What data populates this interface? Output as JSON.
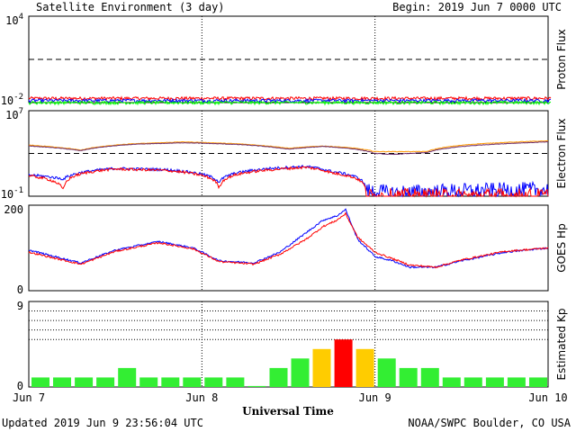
{
  "header": {
    "title": "Satellite Environment (3 day)",
    "begin": "Begin:  2019 Jun 7 0000 UTC"
  },
  "footer": {
    "updated": "Updated 2019 Jun  9 23:56:04 UTC",
    "credit": "NOAA/SWPC Boulder, CO USA"
  },
  "chart_data": [
    {
      "type": "line",
      "ylabel": "Proton Flux",
      "scale": "log",
      "y_ticks": [
        {
          "base": "10",
          "exp": "4"
        },
        {
          "base": "10",
          "exp": "-2"
        }
      ],
      "threshold": 10,
      "series": [
        {
          "color": "#ff0000",
          "level": 0.02
        },
        {
          "color": "#0000ff",
          "level": 0.014
        },
        {
          "color": "#00ff00",
          "level": 0.01
        }
      ]
    },
    {
      "type": "line",
      "ylabel": "Electron Flux",
      "scale": "log",
      "y_ticks": [
        {
          "base": "10",
          "exp": "7"
        },
        {
          "base": "10",
          "exp": "-1"
        }
      ],
      "threshold": 1000,
      "series": [
        {
          "color": "#ff9900",
          "x": [
            0,
            0.3,
            0.6,
            0.9,
            1.2,
            1.5,
            1.7,
            1.85,
            2.0,
            2.1,
            2.3,
            2.6,
            3.0
          ],
          "y": [
            6000,
            2000,
            8000,
            12000,
            8000,
            3000,
            5000,
            3500,
            1500,
            1500,
            1500,
            8000,
            15000
          ]
        },
        {
          "color": "#6a2a6a",
          "x": [
            0,
            0.3,
            0.6,
            0.9,
            1.2,
            1.5,
            1.7,
            1.85,
            2.0,
            2.1,
            2.3,
            2.6,
            3.0
          ],
          "y": [
            5000,
            1800,
            7000,
            10000,
            7000,
            2500,
            4500,
            3000,
            1000,
            800,
            1200,
            6000,
            12000
          ]
        },
        {
          "color": "#0000ff",
          "x": [
            0,
            0.2,
            0.5,
            0.8,
            1.1,
            1.4,
            1.6,
            1.75,
            1.95,
            2.1,
            2.5,
            3.0
          ],
          "y": [
            10,
            4,
            40,
            30,
            2,
            40,
            60,
            20,
            0.3,
            0.2,
            0.3,
            0.4
          ]
        },
        {
          "color": "#ff0000",
          "x": [
            0,
            0.2,
            0.5,
            0.8,
            1.1,
            1.4,
            1.6,
            1.75,
            1.95,
            2.1,
            2.5,
            3.0
          ],
          "y": [
            8,
            0.3,
            35,
            25,
            0.5,
            30,
            50,
            15,
            0.1,
            0.1,
            0.1,
            0.1
          ]
        }
      ]
    },
    {
      "type": "line",
      "ylabel": "GOES Hp",
      "scale": "linear",
      "ylim": [
        0,
        200
      ],
      "y_ticks": [
        "200",
        "0"
      ],
      "series": [
        {
          "color": "#0000ff",
          "x": [
            0,
            0.3,
            0.5,
            0.75,
            0.95,
            1.1,
            1.3,
            1.45,
            1.6,
            1.7,
            1.78,
            1.83,
            1.9,
            2.0,
            2.1,
            2.2,
            2.35,
            2.5,
            2.75,
            3.0
          ],
          "y": [
            95,
            65,
            95,
            115,
            100,
            70,
            65,
            90,
            135,
            165,
            175,
            190,
            120,
            80,
            70,
            55,
            55,
            70,
            90,
            100
          ]
        },
        {
          "color": "#ff0000",
          "x": [
            0,
            0.3,
            0.5,
            0.75,
            0.95,
            1.1,
            1.3,
            1.45,
            1.6,
            1.7,
            1.78,
            1.83,
            1.9,
            2.0,
            2.1,
            2.2,
            2.35,
            2.5,
            2.75,
            3.0
          ],
          "y": [
            90,
            62,
            92,
            112,
            98,
            68,
            62,
            85,
            120,
            150,
            165,
            180,
            125,
            90,
            75,
            60,
            55,
            72,
            92,
            100
          ]
        }
      ]
    },
    {
      "type": "bar",
      "ylabel": "Estimated Kp",
      "ylim": [
        0,
        9
      ],
      "y_ticks": [
        "9",
        "0"
      ],
      "grid_lines": [
        5,
        6,
        7,
        8,
        9
      ],
      "values": [
        1,
        1,
        1,
        1,
        2,
        1,
        1,
        1,
        1,
        1,
        0.1,
        2,
        3,
        4,
        5,
        4,
        3,
        2,
        2,
        1,
        1,
        1,
        1,
        1
      ],
      "colors": [
        "#33ee33",
        "#33ee33",
        "#33ee33",
        "#33ee33",
        "#33ee33",
        "#33ee33",
        "#33ee33",
        "#33ee33",
        "#33ee33",
        "#33ee33",
        "#33ee33",
        "#33ee33",
        "#33ee33",
        "#ffcc00",
        "#ff0000",
        "#ffcc00",
        "#33ee33",
        "#33ee33",
        "#33ee33",
        "#33ee33",
        "#33ee33",
        "#33ee33",
        "#33ee33",
        "#33ee33"
      ]
    }
  ],
  "x_axis": {
    "title": "Universal Time",
    "ticks": [
      "Jun 7",
      "Jun 8",
      "Jun 9",
      "Jun 10"
    ]
  }
}
